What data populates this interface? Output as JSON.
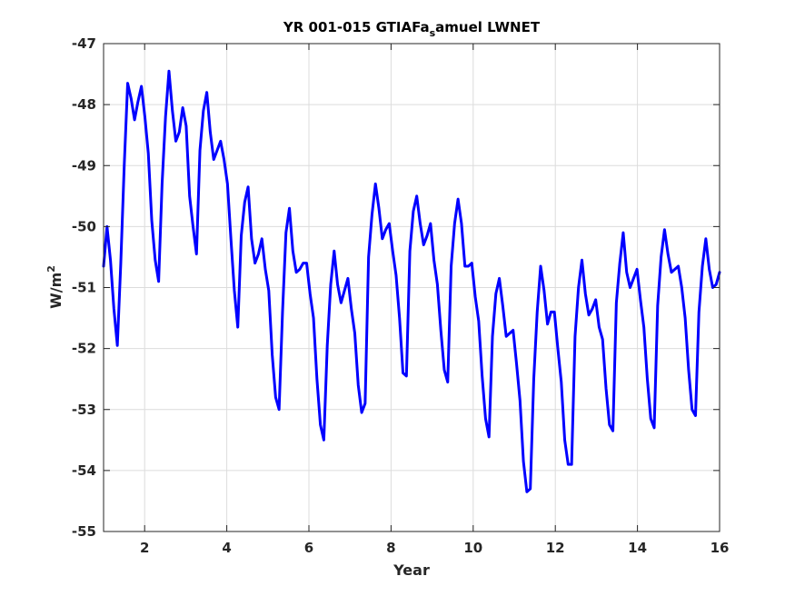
{
  "chart_data": {
    "type": "line",
    "title_main": "YR 001-015 GTIAFa",
    "title_sub": "s",
    "title_rest": "amuel LWNET",
    "ylabel_base": "W/m",
    "ylabel_sup": "2",
    "xlabel": "Year",
    "xlim": [
      1,
      16
    ],
    "ylim": [
      -55,
      -47
    ],
    "xticks": [
      2,
      4,
      6,
      8,
      10,
      12,
      14,
      16
    ],
    "yticks": [
      -55,
      -54,
      -53,
      -52,
      -51,
      -50,
      -49,
      -48,
      -47
    ],
    "grid": true,
    "line_color": "#0000ff",
    "series": [
      {
        "values": [
          -50.65,
          -50.0,
          -50.55,
          -51.35,
          -51.95,
          -50.6,
          -49.0,
          -47.65,
          -47.9,
          -48.25,
          -47.95,
          -47.7,
          -48.2,
          -48.8,
          -49.9,
          -50.55,
          -50.9,
          -49.3,
          -48.2,
          -47.45,
          -48.1,
          -48.6,
          -48.45,
          -48.05,
          -48.35,
          -49.5,
          -50.0,
          -50.45,
          -48.75,
          -48.1,
          -47.8,
          -48.45,
          -48.9,
          -48.75,
          -48.6,
          -48.9,
          -49.3,
          -50.2,
          -51.05,
          -51.65,
          -50.15,
          -49.6,
          -49.35,
          -50.2,
          -50.6,
          -50.45,
          -50.2,
          -50.7,
          -51.05,
          -52.1,
          -52.8,
          -53.0,
          -51.4,
          -50.1,
          -49.7,
          -50.4,
          -50.75,
          -50.7,
          -50.6,
          -50.6,
          -51.1,
          -51.5,
          -52.5,
          -53.25,
          -53.5,
          -51.95,
          -50.95,
          -50.4,
          -50.95,
          -51.25,
          -51.05,
          -50.85,
          -51.35,
          -51.75,
          -52.6,
          -53.05,
          -52.9,
          -50.5,
          -49.8,
          -49.3,
          -49.7,
          -50.2,
          -50.05,
          -49.95,
          -50.4,
          -50.8,
          -51.5,
          -52.4,
          -52.45,
          -50.4,
          -49.75,
          -49.5,
          -49.95,
          -50.3,
          -50.15,
          -49.95,
          -50.55,
          -50.95,
          -51.7,
          -52.35,
          -52.55,
          -50.65,
          -49.95,
          -49.55,
          -49.95,
          -50.65,
          -50.65,
          -50.6,
          -51.15,
          -51.55,
          -52.45,
          -53.15,
          -53.45,
          -51.8,
          -51.1,
          -50.85,
          -51.3,
          -51.8,
          -51.75,
          -51.7,
          -52.25,
          -52.85,
          -53.85,
          -54.35,
          -54.3,
          -52.5,
          -51.4,
          -50.65,
          -51.05,
          -51.6,
          -51.4,
          -51.4,
          -52.0,
          -52.55,
          -53.5,
          -53.9,
          -53.9,
          -51.8,
          -51.0,
          -50.55,
          -51.1,
          -51.45,
          -51.35,
          -51.2,
          -51.65,
          -51.85,
          -52.65,
          -53.25,
          -53.35,
          -51.25,
          -50.6,
          -50.1,
          -50.75,
          -51.0,
          -50.85,
          -50.7,
          -51.2,
          -51.65,
          -52.5,
          -53.15,
          -53.3,
          -51.3,
          -50.5,
          -50.05,
          -50.45,
          -50.75,
          -50.7,
          -50.65,
          -51.0,
          -51.5,
          -52.35,
          -53.0,
          -53.1,
          -51.4,
          -50.65,
          -50.2,
          -50.7,
          -51.0,
          -50.95,
          -50.75
        ]
      }
    ]
  }
}
